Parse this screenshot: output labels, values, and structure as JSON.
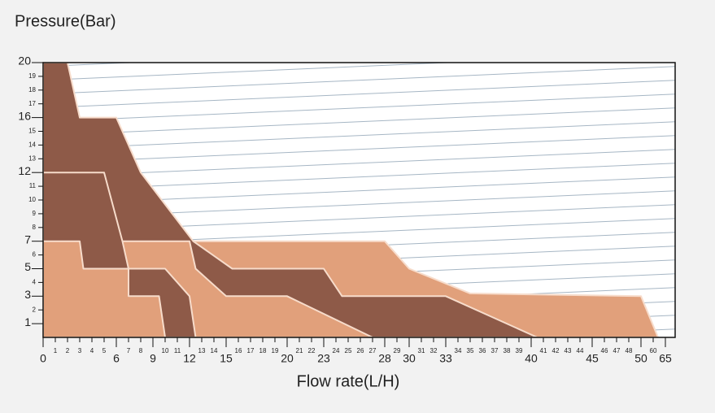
{
  "chart_data": {
    "type": "area",
    "y_label": "Pressure(Bar)",
    "x_label": "Flow rate(L/H)",
    "ylim": [
      0,
      20
    ],
    "yticks": [
      1,
      2,
      3,
      4,
      5,
      6,
      7,
      8,
      9,
      10,
      11,
      12,
      13,
      14,
      15,
      16,
      17,
      18,
      19,
      20
    ],
    "major_yticks": [
      1,
      3,
      5,
      7,
      12,
      16,
      20
    ],
    "xlim": [
      0,
      65
    ],
    "xticks": [
      0,
      1,
      2,
      3,
      4,
      5,
      6,
      7,
      8,
      9,
      10,
      11,
      12,
      13,
      14,
      15,
      16,
      17,
      18,
      19,
      20,
      21,
      22,
      23,
      24,
      25,
      26,
      27,
      28,
      29,
      30,
      31,
      32,
      33,
      34,
      35,
      36,
      37,
      38,
      39,
      40,
      41,
      42,
      43,
      44,
      45,
      46,
      47,
      48,
      50,
      60,
      65
    ],
    "major_xticks": [
      0,
      6,
      9,
      12,
      15,
      20,
      23,
      28,
      30,
      33,
      40,
      45,
      50,
      65
    ],
    "hatch": true,
    "series": [
      {
        "color": "#e1a07b",
        "x": [
          0,
          0,
          28,
          30,
          35,
          50,
          62
        ],
        "values": [
          0,
          7,
          7,
          5,
          3.2,
          3,
          0
        ]
      },
      {
        "color": "#8e5a48",
        "x": [
          0,
          0,
          2,
          3,
          6,
          8,
          12.3,
          15.5,
          23,
          24.5,
          33,
          40.5
        ],
        "values": [
          0,
          20,
          20,
          16,
          16,
          12,
          7,
          5,
          5,
          3,
          3,
          0
        ]
      },
      {
        "color": "#e1a07b",
        "x": [
          0,
          0,
          12,
          12.5,
          15,
          20,
          27
        ],
        "values": [
          0,
          7,
          7,
          5,
          3,
          3,
          0
        ]
      },
      {
        "color": "#8e5a48",
        "x": [
          0,
          0,
          5,
          6.5,
          7,
          10,
          12,
          12.5
        ],
        "values": [
          0,
          12,
          12,
          7,
          5,
          5,
          3,
          0
        ]
      },
      {
        "color": "#e1a07b",
        "x": [
          0,
          0,
          3,
          3.3,
          7,
          7,
          9.5,
          10
        ],
        "values": [
          0,
          7,
          7,
          5,
          5,
          3,
          3,
          0
        ]
      }
    ]
  }
}
